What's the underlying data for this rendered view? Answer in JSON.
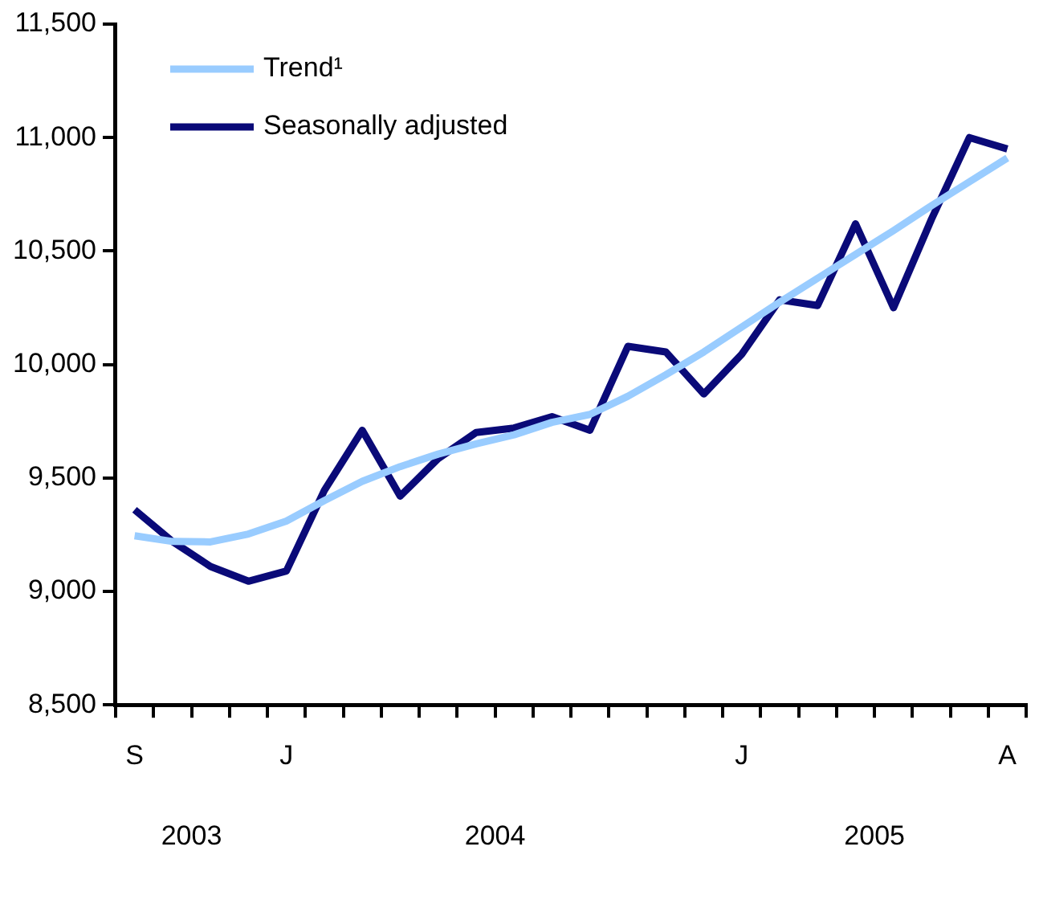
{
  "chart_data": {
    "type": "line",
    "categories": [
      "S",
      null,
      null,
      null,
      "J",
      null,
      null,
      null,
      null,
      null,
      null,
      null,
      null,
      null,
      null,
      null,
      "J",
      null,
      null,
      null,
      null,
      null,
      null,
      "A"
    ],
    "annotations": [
      "2003",
      "2004",
      "2005"
    ],
    "series": [
      {
        "name": "Trend¹",
        "color": "#99ccff",
        "values": [
          9245,
          9220,
          9218,
          9253,
          9310,
          9400,
          9485,
          9550,
          9605,
          9650,
          9690,
          9745,
          9780,
          9860,
          9955,
          10055,
          10165,
          10275,
          10380,
          10485,
          10590,
          10700,
          10805,
          10910
        ]
      },
      {
        "name": "Seasonally adjusted",
        "color": "#0a0a78",
        "values": [
          9360,
          9220,
          9110,
          9045,
          9090,
          9445,
          9710,
          9420,
          9585,
          9700,
          9720,
          9770,
          9710,
          10080,
          10055,
          9870,
          10045,
          10285,
          10260,
          10620,
          10250,
          10640,
          11000,
          10950
        ]
      }
    ],
    "ylim": [
      8500,
      11500
    ],
    "yticks": [
      {
        "value": 8500,
        "label": "8,500"
      },
      {
        "value": 9000,
        "label": "9,000"
      },
      {
        "value": 9500,
        "label": "9,500"
      },
      {
        "value": 10000,
        "label": "10,000"
      },
      {
        "value": 10500,
        "label": "10,500"
      },
      {
        "value": 11000,
        "label": "11,000"
      },
      {
        "value": 11500,
        "label": "11,500"
      }
    ],
    "grid": false,
    "legend": "top left",
    "marker": "none",
    "line_style": "solid"
  }
}
